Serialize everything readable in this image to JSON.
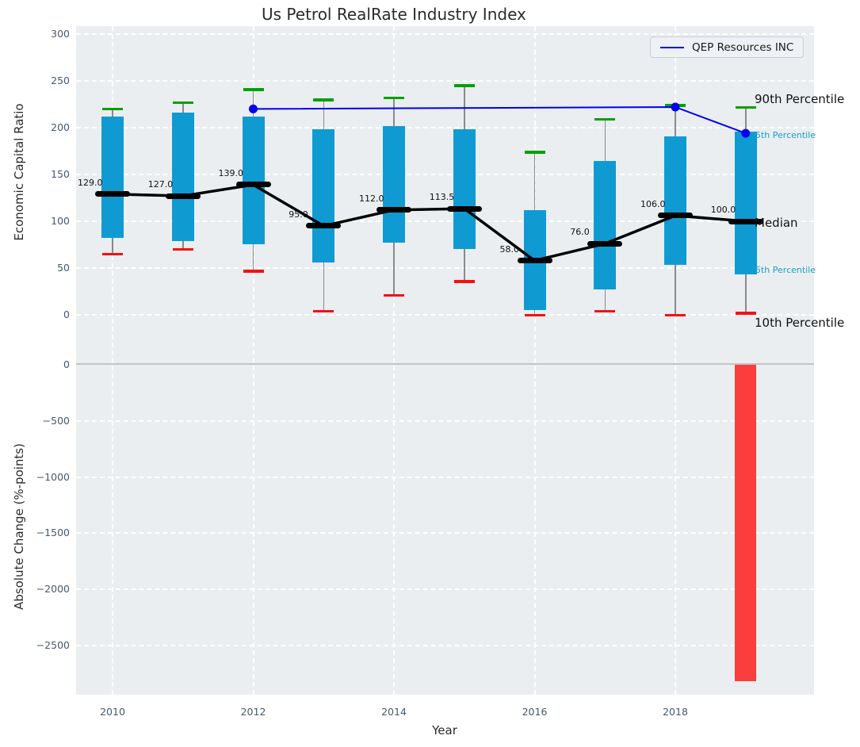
{
  "title": "Us Petrol RealRate Industry Index",
  "legend": {
    "label": "QEP Resources INC"
  },
  "xlabel": "Year",
  "chart_data": {
    "type": "boxplot+line+bar",
    "top_panel": {
      "ylabel": "Economic Capital Ratio",
      "yticks": [
        0,
        50,
        100,
        150,
        200,
        250,
        300
      ],
      "ylim": [
        -55,
        308
      ],
      "grid": true,
      "legend_position": "upper right",
      "xtick_labels": [
        "2010",
        "2012",
        "2014",
        "2016",
        "2018"
      ],
      "xtick_years": [
        2010,
        2012,
        2014,
        2016,
        2018
      ],
      "boxes": [
        {
          "year": 2010,
          "p90": 220,
          "p75": 212,
          "median": 129.0,
          "p25": 82,
          "p10": 65,
          "label": "129.0"
        },
        {
          "year": 2011,
          "p90": 227,
          "p75": 216,
          "median": 127.0,
          "p25": 79,
          "p10": 70,
          "label": "127.0"
        },
        {
          "year": 2012,
          "p90": 241,
          "p75": 212,
          "median": 139.0,
          "p25": 75,
          "p10": 47,
          "label": "139.0"
        },
        {
          "year": 2013,
          "p90": 230,
          "p75": 198,
          "median": 95.0,
          "p25": 56,
          "p10": 4,
          "label": "95.0"
        },
        {
          "year": 2014,
          "p90": 232,
          "p75": 202,
          "median": 112.0,
          "p25": 77,
          "p10": 21,
          "label": "112.0"
        },
        {
          "year": 2015,
          "p90": 245,
          "p75": 198,
          "median": 113.5,
          "p25": 70,
          "p10": 36,
          "label": "113.5"
        },
        {
          "year": 2016,
          "p90": 174,
          "p75": 112,
          "median": 58.0,
          "p25": 5,
          "p10": 0,
          "label": "58.0"
        },
        {
          "year": 2017,
          "p90": 209,
          "p75": 164,
          "median": 76.0,
          "p25": 27,
          "p10": 4,
          "label": "76.0"
        },
        {
          "year": 2018,
          "p90": 224,
          "p75": 191,
          "median": 106.0,
          "p25": 53,
          "p10": 0,
          "label": "106.0"
        },
        {
          "year": 2019,
          "p90": 222,
          "p75": 196,
          "median": 100.0,
          "p25": 43,
          "p10": 2,
          "label": "100.0"
        }
      ],
      "company_line": {
        "name": "QEP Resources INC",
        "points": [
          {
            "year": 2012,
            "value": 220
          },
          {
            "year": 2018,
            "value": 222
          },
          {
            "year": 2019,
            "value": 194
          }
        ]
      },
      "annotations": [
        {
          "text": "90th Percentile",
          "value": 222,
          "style": "large"
        },
        {
          "text": "75th Percentile",
          "value": 196,
          "style": "small"
        },
        {
          "text": "Median",
          "value": 100,
          "style": "large"
        },
        {
          "text": "25th Percentile",
          "value": 43,
          "style": "small"
        },
        {
          "text": "10th Percentile",
          "value": 2,
          "style": "large"
        }
      ]
    },
    "bottom_panel": {
      "ylabel": "Absolute Change (%-points)",
      "yticks": [
        0,
        -500,
        -1000,
        -1500,
        -2000,
        -2500
      ],
      "ylim": [
        -2940,
        0
      ],
      "grid": true,
      "bars": [
        {
          "year": 2019,
          "value": -2820
        }
      ]
    },
    "colors": {
      "box_fill": "#0f9bd2",
      "whisker": "#8a8a8a",
      "cap_high": "#07a007",
      "cap_low": "#f51111",
      "median": "#000000",
      "company_line": "#0000f0",
      "bar_negative": "#fa3d3d",
      "axes_background": "#eaeef0",
      "grid": "#ffffff",
      "tick_text": "#46586f",
      "annotation_small": "#16a0cc",
      "zero_line": "#c4c4c4"
    }
  }
}
